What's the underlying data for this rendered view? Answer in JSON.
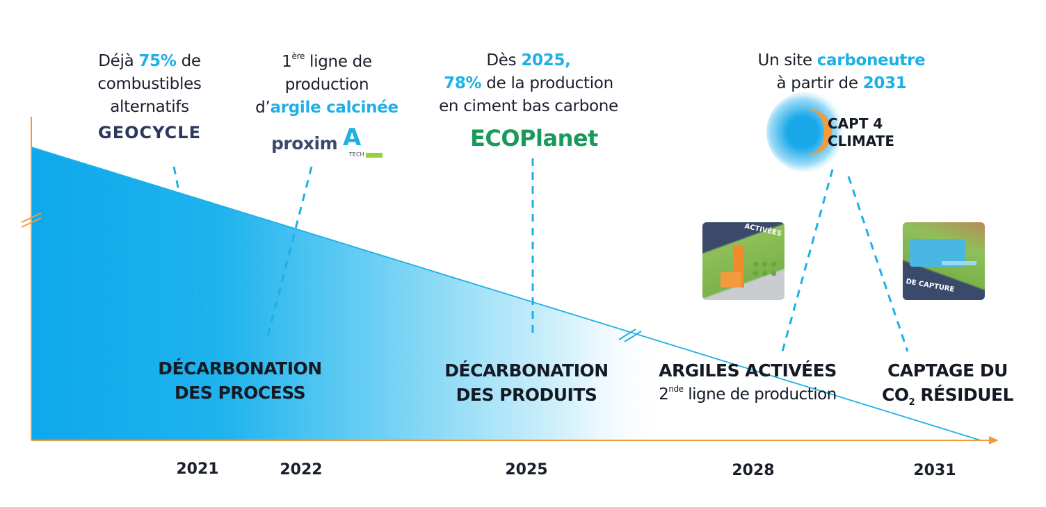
{
  "milestones": {
    "m2021": {
      "pre": "Déjà ",
      "hl": "75%",
      "post": " de",
      "line2": "combustibles",
      "line3": "alternatifs",
      "logo": "GEOCYCLE"
    },
    "m2022": {
      "sup_pre": "1",
      "sup": "ère",
      "line1_post": " ligne de",
      "line2": "production",
      "line3_pre": "d’",
      "line3_hl": "argile calcinée",
      "logo": "proxim",
      "logo_sub": "TECH"
    },
    "m2025": {
      "pre": "Dès ",
      "hl1": "2025,",
      "hl2": "78%",
      "line2_post": " de la production",
      "line3": "en ciment bas carbone",
      "logo_a": "ECO",
      "logo_b": "Planet"
    },
    "m2031": {
      "pre": "Un site ",
      "hl1": "carboneutre",
      "line2_pre": "à partir de ",
      "hl2": "2031",
      "logo_line1": "CAPT 4",
      "logo_line2": "CLIMATE"
    }
  },
  "phases": {
    "process": {
      "line1": "DÉCARBONATION",
      "line2": "DES PROCESS"
    },
    "produits": {
      "line1": "DÉCARBONATION",
      "line2": "DES PRODUITS"
    },
    "argiles": {
      "line1": "ARGILES ACTIVÉES",
      "sub_pre": "2",
      "sub_sup": "nde",
      "sub_post": " ligne de production"
    },
    "captage": {
      "line1": "CAPTAGE DU",
      "line2_pre": "CO",
      "line2_sub": "2",
      "line2_post": " RÉSIDUEL"
    }
  },
  "illustrations": {
    "argiles": "ACTIVÉES",
    "captage": "DE CAPTURE"
  },
  "years": [
    "2021",
    "2022",
    "2025",
    "2028",
    "2031"
  ],
  "colors": {
    "accent": "#1cb0e6",
    "axis": "#f39a3d",
    "text": "#1a1f2b",
    "ecoplanet": "#1a9a5a",
    "geocycle": "#2b3a5c",
    "proxim": "#3a4a6a"
  }
}
